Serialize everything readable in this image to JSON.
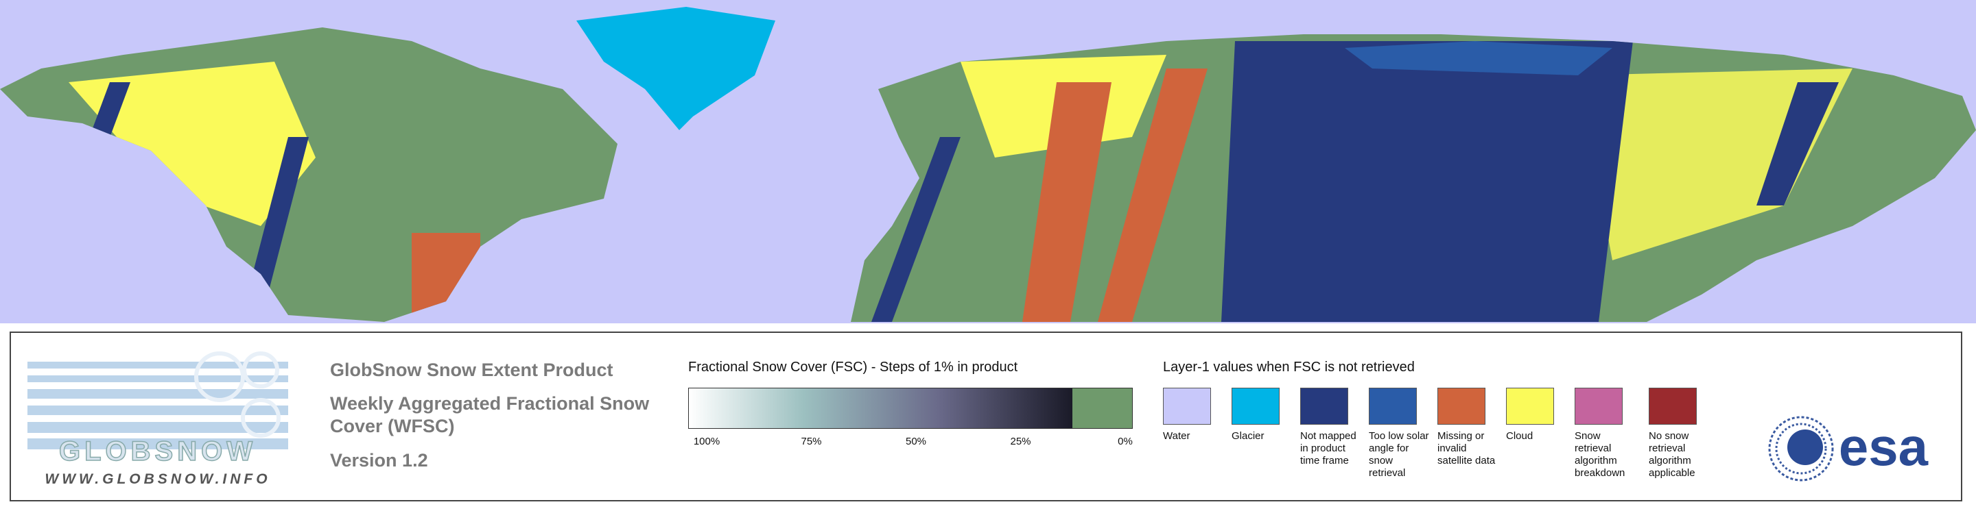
{
  "header": {
    "title": "GlobSnow Snow Extent Product",
    "subtitle": "Weekly Aggregated Fractional Snow Cover (WFSC)",
    "version": "Version 1.2"
  },
  "logo": {
    "name": "GLOBSNOW",
    "url": "WWW.GLOBSNOW.INFO",
    "agency": "esa"
  },
  "colorbar": {
    "title": "Fractional Snow Cover (FSC) - Steps of 1% in product",
    "ticks": [
      "100%",
      "75%",
      "50%",
      "25%",
      "0%"
    ],
    "low_color": "#6f9a6c"
  },
  "layer1": {
    "title": "Layer-1 values when FSC is not retrieved",
    "items": [
      {
        "label": "Water",
        "color": "#c8c8fa"
      },
      {
        "label": "Glacier",
        "color": "#00b4e6"
      },
      {
        "label": "Not mapped in product time frame",
        "color": "#263a7e"
      },
      {
        "label": "Too low solar angle for snow retrieval",
        "color": "#2a5ca8"
      },
      {
        "label": "Missing or invalid satellite data",
        "color": "#d0643c"
      },
      {
        "label": "Cloud",
        "color": "#fafa5a"
      },
      {
        "label": "Snow retrieval algorithm breakdown",
        "color": "#c4649e"
      },
      {
        "label": "No snow retrieval algorithm applicable",
        "color": "#9a2a2e"
      }
    ]
  }
}
